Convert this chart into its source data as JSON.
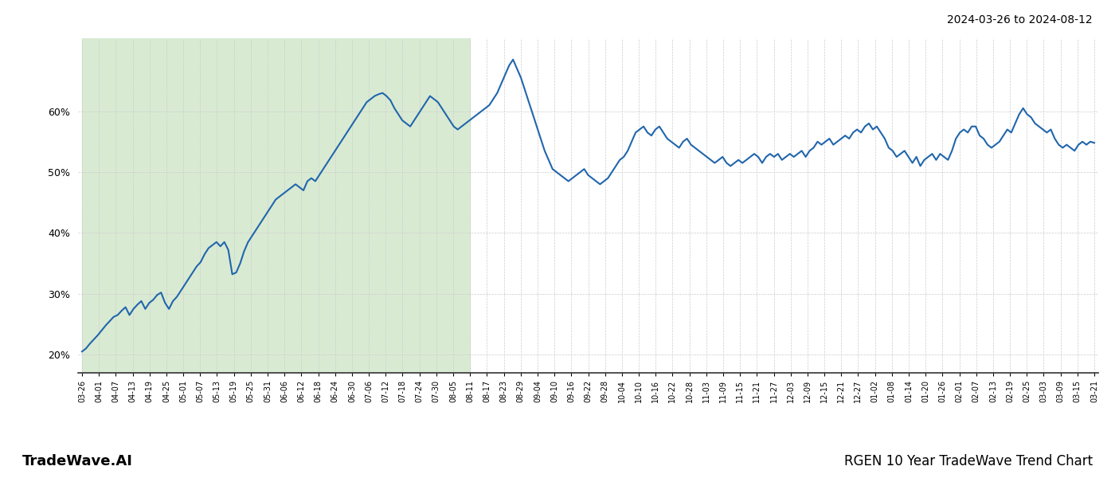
{
  "title_top_right": "2024-03-26 to 2024-08-12",
  "title_bottom_right": "RGEN 10 Year TradeWave Trend Chart",
  "title_bottom_left": "TradeWave.AI",
  "line_color": "#2166ac",
  "line_width": 1.5,
  "highlight_bg_color": "#d9ead3",
  "ylim_min": 17,
  "ylim_max": 72,
  "yticks": [
    20,
    30,
    40,
    50,
    60
  ],
  "background_color": "#ffffff",
  "grid_color": "#cccccc",
  "x_labels": [
    "03-26",
    "04-01",
    "04-07",
    "04-13",
    "04-19",
    "04-25",
    "05-01",
    "05-07",
    "05-13",
    "05-19",
    "05-25",
    "05-31",
    "06-06",
    "06-12",
    "06-18",
    "06-24",
    "06-30",
    "07-06",
    "07-12",
    "07-18",
    "07-24",
    "07-30",
    "08-05",
    "08-11",
    "08-17",
    "08-23",
    "08-29",
    "09-04",
    "09-10",
    "09-16",
    "09-22",
    "09-28",
    "10-04",
    "10-10",
    "10-16",
    "10-22",
    "10-28",
    "11-03",
    "11-09",
    "11-15",
    "11-21",
    "11-27",
    "12-03",
    "12-09",
    "12-15",
    "12-21",
    "12-27",
    "01-02",
    "01-08",
    "01-14",
    "01-20",
    "01-26",
    "02-01",
    "02-07",
    "02-13",
    "02-19",
    "02-25",
    "03-03",
    "03-09",
    "03-15",
    "03-21"
  ],
  "highlight_label_end": "08-11",
  "y_values": [
    20.5,
    21.0,
    21.8,
    22.5,
    23.2,
    24.0,
    24.8,
    25.5,
    26.2,
    26.5,
    27.2,
    27.8,
    26.5,
    27.5,
    28.2,
    28.8,
    27.5,
    28.5,
    29.0,
    29.8,
    30.2,
    28.5,
    27.5,
    28.8,
    29.5,
    30.5,
    31.5,
    32.5,
    33.5,
    34.5,
    35.2,
    36.5,
    37.5,
    38.0,
    38.5,
    37.8,
    38.5,
    37.2,
    33.2,
    33.5,
    35.0,
    37.0,
    38.5,
    39.5,
    40.5,
    41.5,
    42.5,
    43.5,
    44.5,
    45.5,
    46.0,
    46.5,
    47.0,
    47.5,
    48.0,
    47.5,
    47.0,
    48.5,
    49.0,
    48.5,
    49.5,
    50.5,
    51.5,
    52.5,
    53.5,
    54.5,
    55.5,
    56.5,
    57.5,
    58.5,
    59.5,
    60.5,
    61.5,
    62.0,
    62.5,
    62.8,
    63.0,
    62.5,
    61.8,
    60.5,
    59.5,
    58.5,
    58.0,
    57.5,
    58.5,
    59.5,
    60.5,
    61.5,
    62.5,
    62.0,
    61.5,
    60.5,
    59.5,
    58.5,
    57.5,
    57.0,
    57.5,
    58.0,
    58.5,
    59.0,
    59.5,
    60.0,
    60.5,
    61.0,
    62.0,
    63.0,
    64.5,
    66.0,
    67.5,
    68.5,
    67.0,
    65.5,
    63.5,
    61.5,
    59.5,
    57.5,
    55.5,
    53.5,
    52.0,
    50.5,
    50.0,
    49.5,
    49.0,
    48.5,
    49.0,
    49.5,
    50.0,
    50.5,
    49.5,
    49.0,
    48.5,
    48.0,
    48.5,
    49.0,
    50.0,
    51.0,
    52.0,
    52.5,
    53.5,
    55.0,
    56.5,
    57.0,
    57.5,
    56.5,
    56.0,
    57.0,
    57.5,
    56.5,
    55.5,
    55.0,
    54.5,
    54.0,
    55.0,
    55.5,
    54.5,
    54.0,
    53.5,
    53.0,
    52.5,
    52.0,
    51.5,
    52.0,
    52.5,
    51.5,
    51.0,
    51.5,
    52.0,
    51.5,
    52.0,
    52.5,
    53.0,
    52.5,
    51.5,
    52.5,
    53.0,
    52.5,
    53.0,
    52.0,
    52.5,
    53.0,
    52.5,
    53.0,
    53.5,
    52.5,
    53.5,
    54.0,
    55.0,
    54.5,
    55.0,
    55.5,
    54.5,
    55.0,
    55.5,
    56.0,
    55.5,
    56.5,
    57.0,
    56.5,
    57.5,
    58.0,
    57.0,
    57.5,
    56.5,
    55.5,
    54.0,
    53.5,
    52.5,
    53.0,
    53.5,
    52.5,
    51.5,
    52.5,
    51.0,
    52.0,
    52.5,
    53.0,
    52.0,
    53.0,
    52.5,
    52.0,
    53.5,
    55.5,
    56.5,
    57.0,
    56.5,
    57.5,
    57.5,
    56.0,
    55.5,
    54.5,
    54.0,
    54.5,
    55.0,
    56.0,
    57.0,
    56.5,
    58.0,
    59.5,
    60.5,
    59.5,
    59.0,
    58.0,
    57.5,
    57.0,
    56.5,
    57.0,
    55.5,
    54.5,
    54.0,
    54.5,
    54.0,
    53.5,
    54.5,
    55.0,
    54.5,
    55.0,
    54.8
  ]
}
